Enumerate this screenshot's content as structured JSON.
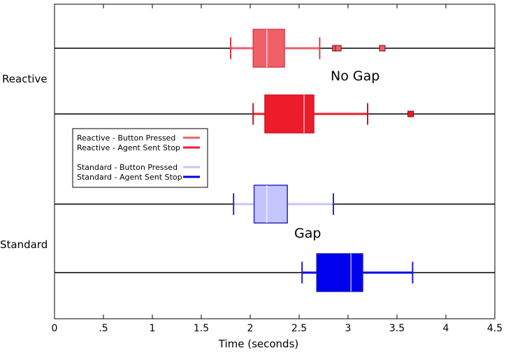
{
  "chart_data": {
    "type": "boxplot",
    "orientation": "horizontal",
    "xlabel": "Time (seconds)",
    "xlim": [
      0,
      4.5
    ],
    "xticks": [
      0,
      0.5,
      1,
      1.5,
      2,
      2.5,
      3,
      3.5,
      4,
      4.5
    ],
    "xtick_labels": [
      "0",
      ".5",
      "1",
      "1.5",
      "2",
      "2.5",
      "3",
      "3.5",
      "4",
      "4.5"
    ],
    "group_labels": [
      "Reactive",
      "Standard"
    ],
    "annotations": [
      "No Gap",
      "Gap"
    ],
    "series": [
      {
        "name": "Reactive - Button Pressed",
        "group": "Reactive",
        "color": "#f0606a",
        "whisker_low": 1.8,
        "q1": 2.03,
        "median": 2.17,
        "q3": 2.35,
        "whisker_high": 2.71,
        "outliers": [
          2.87,
          2.9,
          3.35
        ]
      },
      {
        "name": "Reactive - Agent Sent Stop",
        "group": "Reactive",
        "color": "#ee1c2a",
        "whisker_low": 2.03,
        "q1": 2.15,
        "median": 2.55,
        "q3": 2.65,
        "whisker_high": 3.2,
        "outliers": [
          3.64
        ]
      },
      {
        "name": "Standard - Button Pressed",
        "group": "Standard",
        "color": "#c4c4ff",
        "whisker_low": 1.83,
        "q1": 2.04,
        "median": 2.17,
        "q3": 2.38,
        "whisker_high": 2.85,
        "outliers": []
      },
      {
        "name": "Standard - Agent Sent Stop",
        "group": "Standard",
        "color": "#0000ee",
        "whisker_low": 2.53,
        "q1": 2.68,
        "median": 3.03,
        "q3": 3.15,
        "whisker_high": 3.66,
        "outliers": []
      }
    ],
    "legend_groups": [
      [
        "Reactive - Button Pressed",
        "Reactive - Agent Sent Stop"
      ],
      [
        "Standard - Button Pressed",
        "Standard - Agent Sent Stop"
      ]
    ],
    "legend_position": "left"
  }
}
